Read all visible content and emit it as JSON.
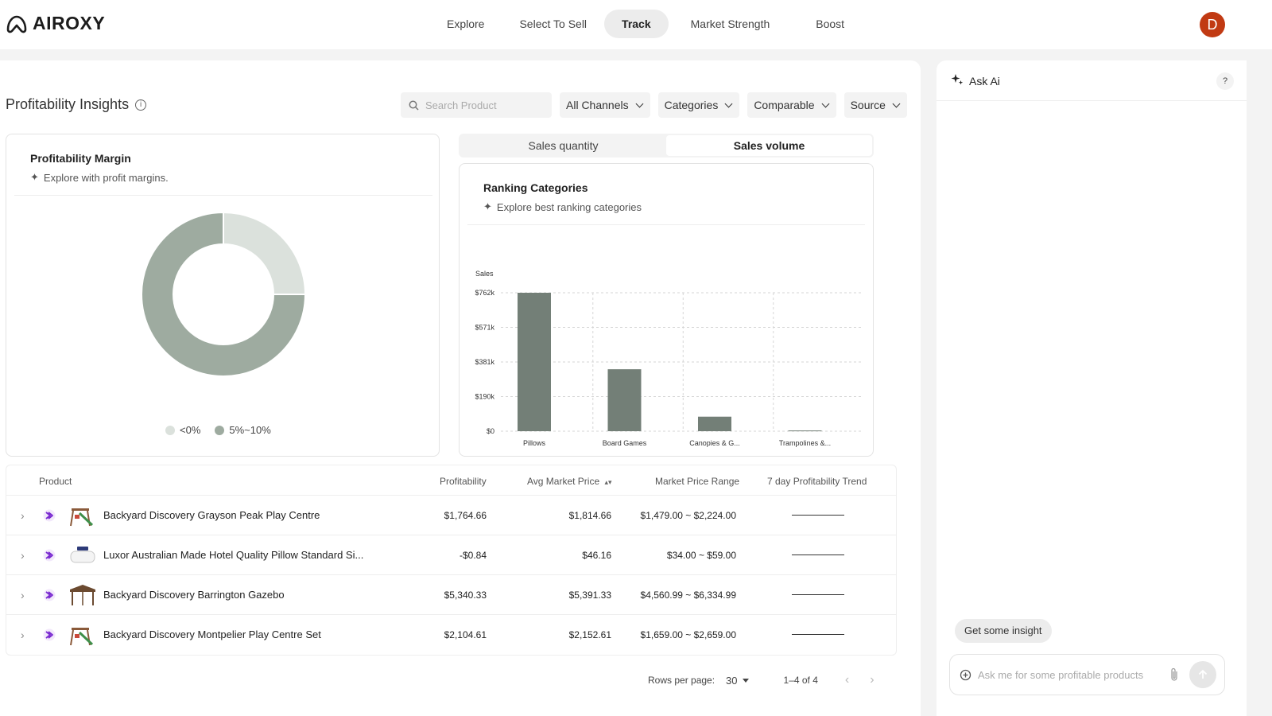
{
  "app": {
    "name": "AIROXY"
  },
  "nav": {
    "items": [
      {
        "label": "Explore"
      },
      {
        "label": "Select To Sell"
      },
      {
        "label": "Track",
        "active": true
      },
      {
        "label": "Market Strength"
      },
      {
        "label": "Boost"
      }
    ]
  },
  "user": {
    "initial": "D",
    "avatar_color": "#c13a13"
  },
  "page": {
    "title": "Profitability Insights"
  },
  "filters": {
    "search_placeholder": "Search Product",
    "channels": "All Channels",
    "categories": "Categories",
    "comparable": "Comparable",
    "source": "Source"
  },
  "margin_card": {
    "title": "Profitability Margin",
    "subtitle": "Explore with profit margins.",
    "legend": [
      {
        "label": "<0%",
        "color": "#dbe1dc"
      },
      {
        "label": "5%~10%",
        "color": "#9eaba0"
      }
    ]
  },
  "toggle": {
    "options": [
      {
        "label": "Sales quantity"
      },
      {
        "label": "Sales volume",
        "active": true
      }
    ]
  },
  "ranking_card": {
    "title": "Ranking Categories",
    "subtitle": "Explore best ranking categories"
  },
  "chart_data": [
    {
      "type": "pie",
      "variant": "donut",
      "labels": [
        "<0%",
        "5%~10%"
      ],
      "values": [
        25,
        75
      ],
      "colors": [
        "#dbe1dc",
        "#9eaba0"
      ],
      "legend_position": "bottom"
    },
    {
      "type": "bar",
      "ylabel": "Sales",
      "categories": [
        "Pillows",
        "Board Games",
        "Canopies & G...",
        "Trampolines &..."
      ],
      "values": [
        762,
        341,
        80,
        4
      ],
      "ylim": [
        0,
        762
      ],
      "yticks": [
        0,
        190.5,
        381,
        571.5,
        762
      ],
      "ytick_labels": [
        "$0",
        "$190k",
        "$381k",
        "$571k",
        "$762k"
      ],
      "grid": true,
      "bar_color": "#737f77"
    }
  ],
  "table": {
    "headers": {
      "product": "Product",
      "profitability": "Profitability",
      "avg_price": "Avg Market Price",
      "range": "Market Price Range",
      "trend": "7 day Profitability Trend"
    },
    "rows": [
      {
        "name": "Backyard Discovery Grayson Peak Play Centre",
        "profitability": "$1,764.66",
        "avg_price": "$1,814.66",
        "range": "$1,479.00 ~ $2,224.00",
        "thumb": "playset-icon"
      },
      {
        "name": "Luxor Australian Made Hotel Quality Pillow Standard Si...",
        "profitability": "-$0.84",
        "avg_price": "$46.16",
        "range": "$34.00 ~ $59.00",
        "thumb": "pillow-icon"
      },
      {
        "name": "Backyard Discovery Barrington Gazebo",
        "profitability": "$5,340.33",
        "avg_price": "$5,391.33",
        "range": "$4,560.99 ~ $6,334.99",
        "thumb": "gazebo-icon"
      },
      {
        "name": "Backyard Discovery Montpelier Play Centre Set",
        "profitability": "$2,104.61",
        "avg_price": "$2,152.61",
        "range": "$1,659.00 ~ $2,659.00",
        "thumb": "playset-icon"
      }
    ]
  },
  "pagination": {
    "rows_per_page_label": "Rows per page:",
    "rows_per_page": "30",
    "range": "1–4 of 4"
  },
  "ai": {
    "title": "Ask Ai",
    "help": "?",
    "chip": "Get some insight",
    "input_placeholder": "Ask me for some profitable products"
  }
}
